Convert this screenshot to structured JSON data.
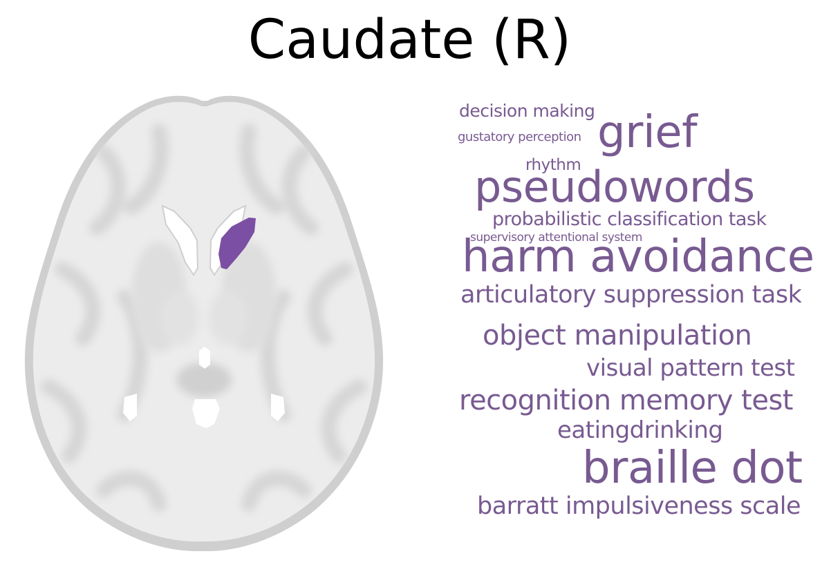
{
  "title": "Caudate (R)",
  "brain": {
    "view": "axial slice",
    "highlighted_region": "right caudate",
    "highlight_color": "#7b4fa3",
    "tissue_colors": {
      "white_matter": "#f4f4f4",
      "gray_matter": "#d2d2d2",
      "outline": "#c8c8c8"
    }
  },
  "word_cloud": {
    "color": "#785a91",
    "words": [
      "decision making",
      "gustatory perception",
      "grief",
      "rhythm",
      "pseudowords",
      "probabilistic classification task",
      "supervisory attentional system",
      "harm avoidance",
      "articulatory suppression task",
      "object manipulation",
      "visual pattern test",
      "recognition memory test",
      "eatingdrinking",
      "braille dot",
      "barratt impulsiveness scale"
    ]
  }
}
